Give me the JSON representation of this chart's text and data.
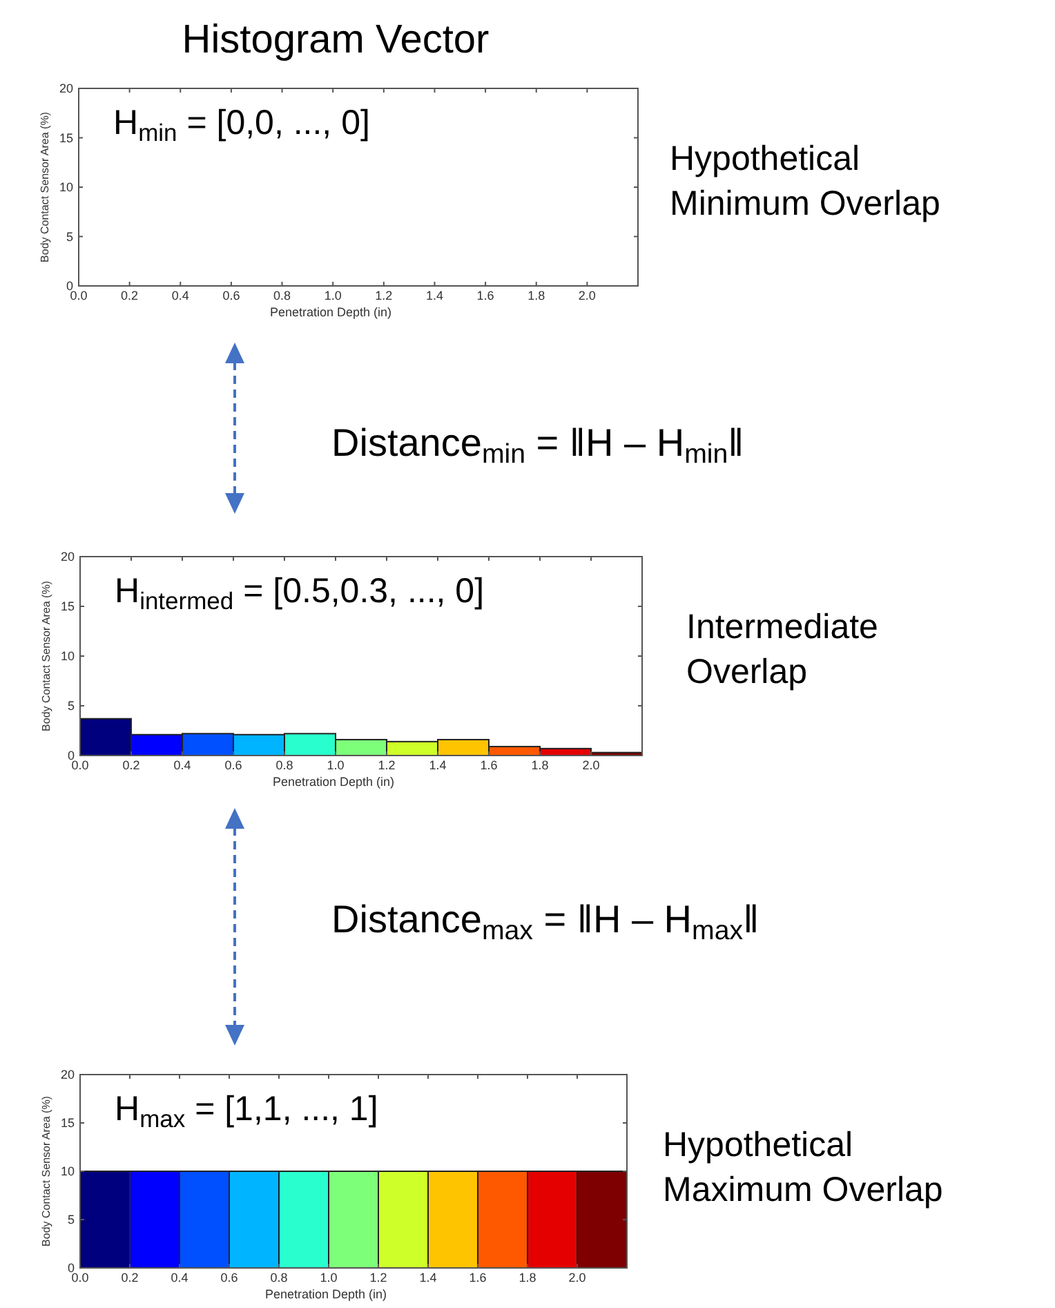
{
  "chart_data": [
    {
      "type": "histogram",
      "title": "Histogram Vector",
      "xlabel": "Penetration Depth (in)",
      "ylabel": "Body Contact Sensor Area (%)",
      "xlim": [
        0,
        2.2
      ],
      "ylim": [
        0,
        20
      ],
      "xticks": [
        {
          "value": 0,
          "label": "0.0"
        },
        {
          "value": 0.2,
          "label": "0.2"
        },
        {
          "value": 0.4,
          "label": "0.4"
        },
        {
          "value": 0.6,
          "label": "0.6"
        },
        {
          "value": 0.8,
          "label": "0.8"
        },
        {
          "value": 1,
          "label": "1.0"
        },
        {
          "value": 1.2,
          "label": "1.2"
        },
        {
          "value": 1.4,
          "label": "1.4"
        },
        {
          "value": 1.6,
          "label": "1.6"
        },
        {
          "value": 1.8,
          "label": "1.8"
        },
        {
          "value": 2,
          "label": "2.0"
        }
      ],
      "yticks": [
        0,
        5,
        10,
        15,
        20
      ],
      "annotations": [
        "H$_{min}$ = [0,0, ..., 0]",
        "Hypothetical Minimum Overlap",
        "Distance$_{min}$ = ‖H – H$_{min}$‖"
      ]
    },
    {
      "type": "histogram",
      "xlabel": "Penetration Depth (in)",
      "ylabel": "Body Contact Sensor Area (%)",
      "bins": [
        0,
        0.2,
        0.4,
        0.6,
        0.8,
        1.0,
        1.2,
        1.4,
        1.6,
        1.8,
        2.0,
        2.2
      ],
      "values": [
        3.7,
        2.1,
        2.2,
        2.1,
        2.2,
        1.6,
        1.4,
        1.6,
        0.9,
        0.7,
        0.3
      ],
      "colors": [
        "#00007f",
        "#0000ff",
        "#0050ff",
        "#00b4ff",
        "#29ffce",
        "#7dff7a",
        "#ceff29",
        "#ffc400",
        "#ff5900",
        "#e50000",
        "#7f0000"
      ],
      "xlim": [
        0,
        2.2
      ],
      "ylim": [
        0,
        20
      ],
      "xticks": [
        {
          "value": 0,
          "label": "0.0"
        },
        {
          "value": 0.2,
          "label": "0.2"
        },
        {
          "value": 0.4,
          "label": "0.4"
        },
        {
          "value": 0.6,
          "label": "0.6"
        },
        {
          "value": 0.8,
          "label": "0.8"
        },
        {
          "value": 1,
          "label": "1.0"
        },
        {
          "value": 1.2,
          "label": "1.2"
        },
        {
          "value": 1.4,
          "label": "1.4"
        },
        {
          "value": 1.6,
          "label": "1.6"
        },
        {
          "value": 1.8,
          "label": "1.8"
        },
        {
          "value": 2,
          "label": "2.0"
        }
      ],
      "yticks": [
        0,
        5,
        10,
        15,
        20
      ],
      "annotations": [
        "H$_{intermed}$ = [0.5,0.3, ..., 0]",
        "Intermediate Overlap",
        "Distance$_{max}$ = ‖H – H$_{max}$‖"
      ]
    },
    {
      "type": "histogram",
      "xlabel": "Penetration Depth (in)",
      "ylabel": "Body Contact Sensor Area (%)",
      "bins": [
        0,
        0.2,
        0.4,
        0.6,
        0.8,
        1.0,
        1.2,
        1.4,
        1.6,
        1.8,
        2.0,
        2.2
      ],
      "values": [
        10,
        10,
        10,
        10,
        10,
        10,
        10,
        10,
        10,
        10,
        10
      ],
      "colors": [
        "#00007f",
        "#0000ff",
        "#0050ff",
        "#00b4ff",
        "#29ffce",
        "#7dff7a",
        "#ceff29",
        "#ffc400",
        "#ff5900",
        "#e50000",
        "#7f0000"
      ],
      "xlim": [
        0,
        2.2
      ],
      "ylim": [
        0,
        20
      ],
      "xticks": [
        {
          "value": 0,
          "label": "0.0"
        },
        {
          "value": 0.2,
          "label": "0.2"
        },
        {
          "value": 0.4,
          "label": "0.4"
        },
        {
          "value": 0.6,
          "label": "0.6"
        },
        {
          "value": 0.8,
          "label": "0.8"
        },
        {
          "value": 1,
          "label": "1.0"
        },
        {
          "value": 1.2,
          "label": "1.2"
        },
        {
          "value": 1.4,
          "label": "1.4"
        },
        {
          "value": 1.6,
          "label": "1.6"
        },
        {
          "value": 1.8,
          "label": "1.8"
        },
        {
          "value": 2,
          "label": "2.0"
        }
      ],
      "yticks": [
        0,
        5,
        10,
        15,
        20
      ],
      "annotations": [
        "H$_{max}$ = [1,1, ..., 1]",
        "Hypothetical Maximum Overlap"
      ]
    }
  ]
}
